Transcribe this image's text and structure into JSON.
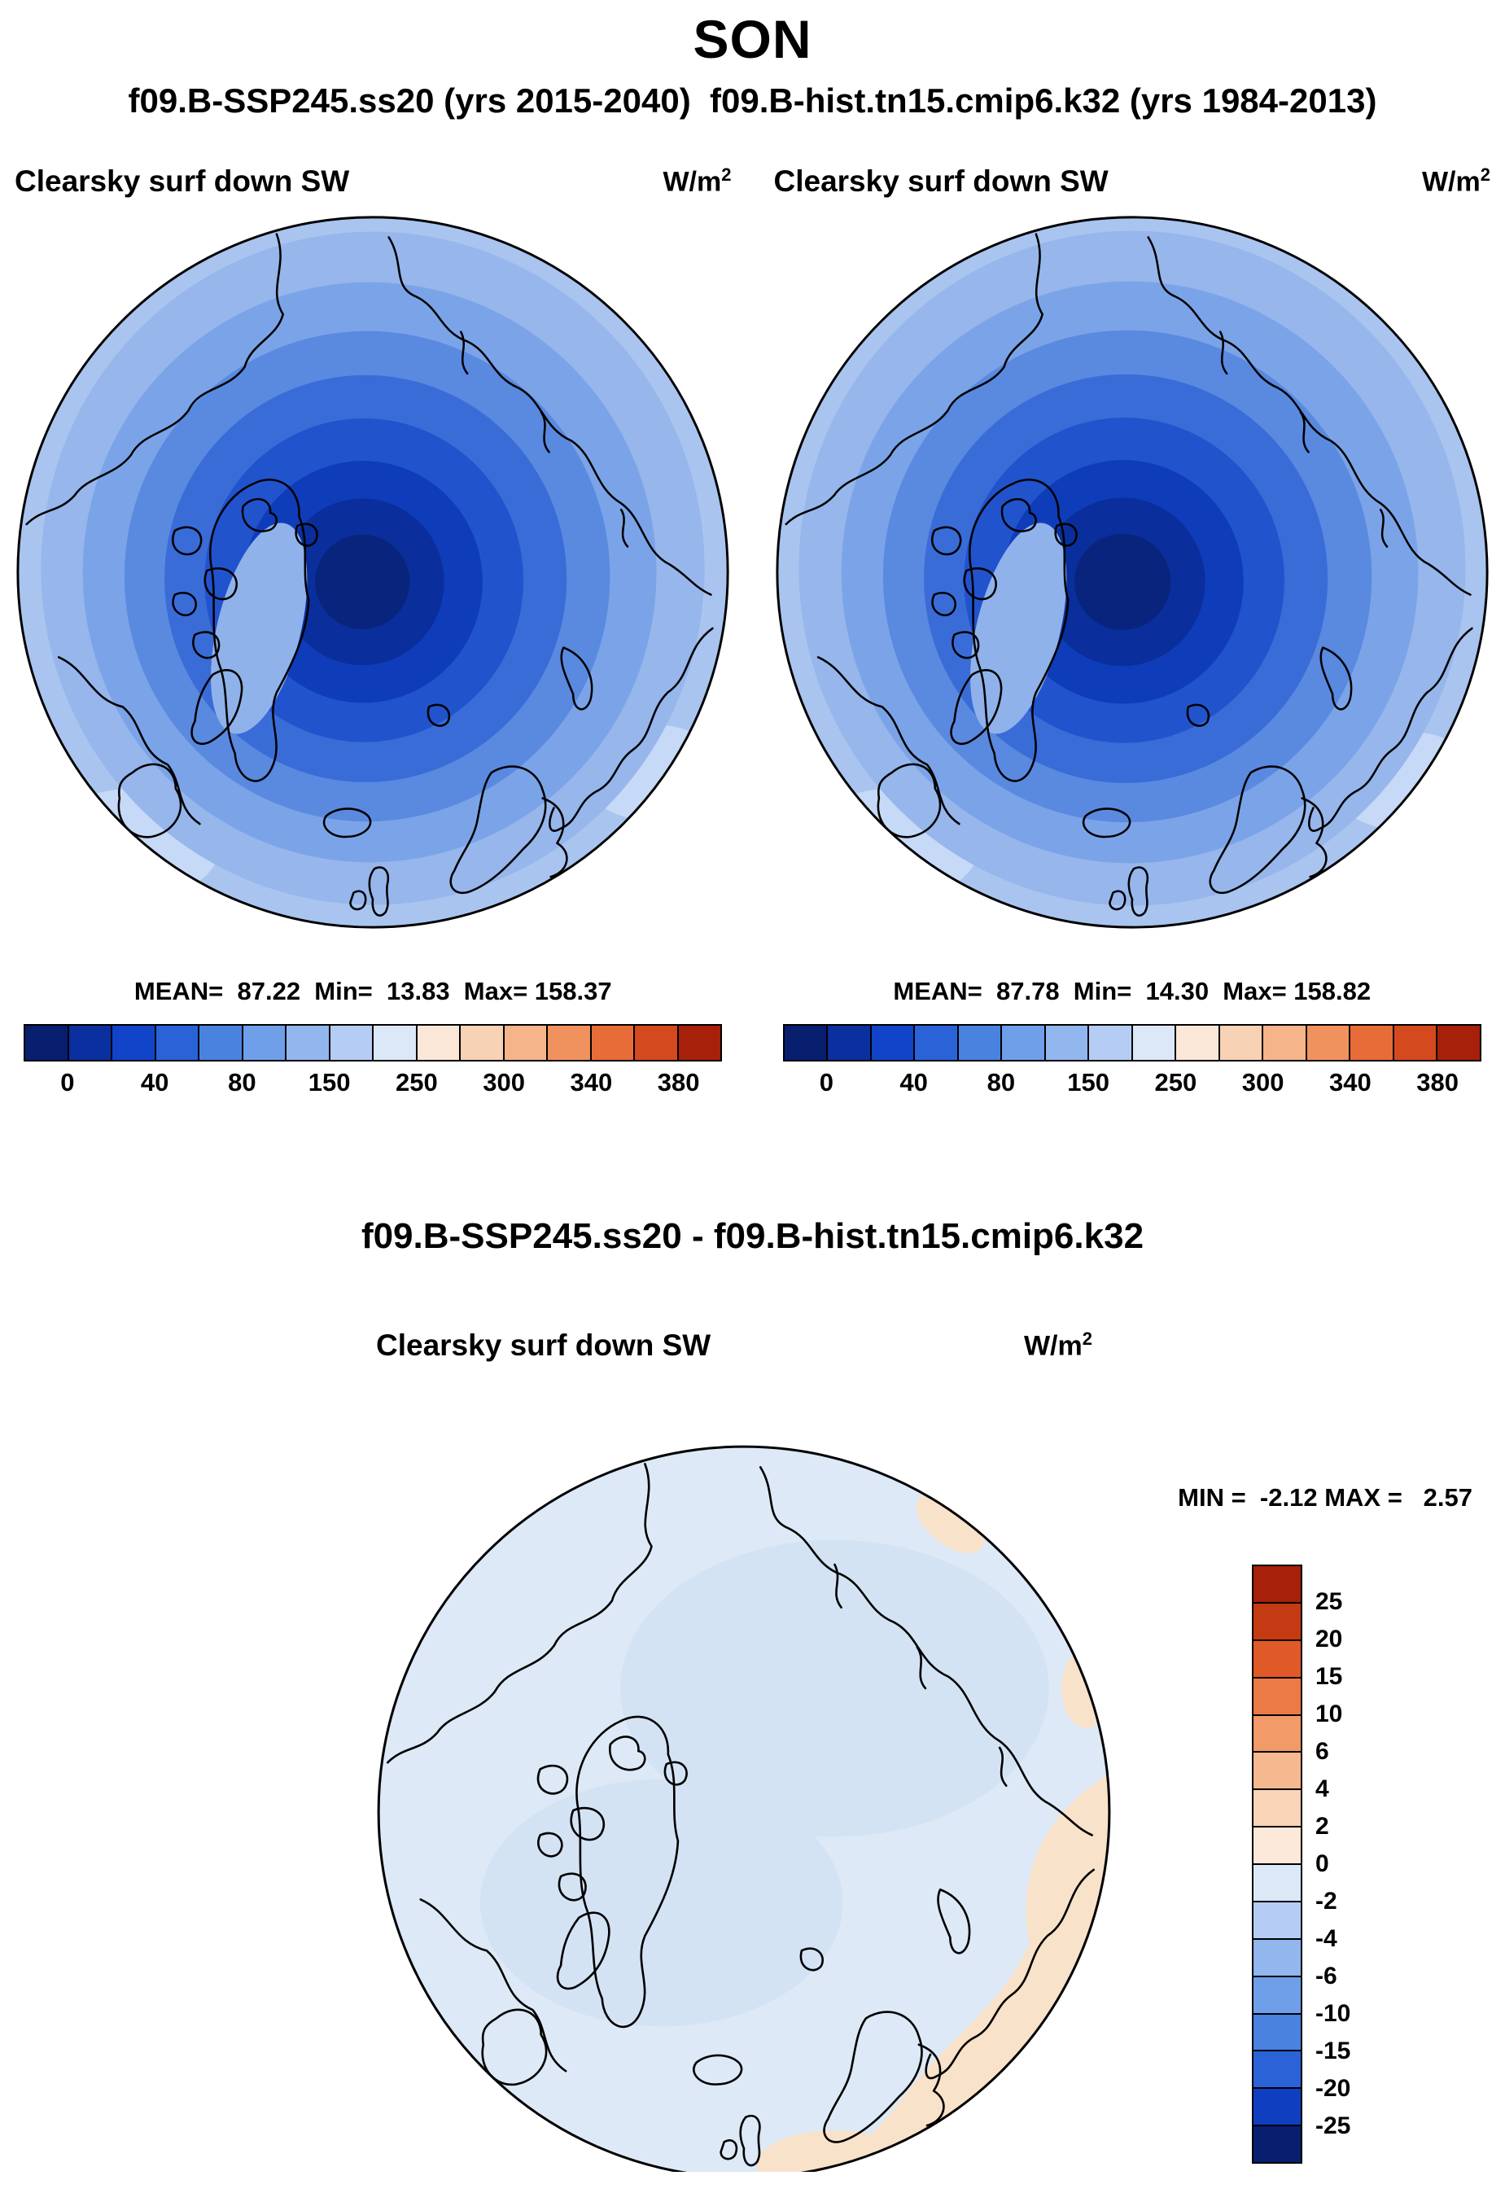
{
  "header": {
    "season": "SON",
    "runs_line": "f09.B-SSP245.ss20 (yrs 2015-2040)  f09.B-hist.tn15.cmip6.k32 (yrs 1984-2013)"
  },
  "panels": [
    {
      "field": "Clearsky surf down SW",
      "units_base": "W/m",
      "units_exp": "2",
      "stats": "MEAN=  87.22  Min=  13.83  Max= 158.37"
    },
    {
      "field": "Clearsky surf down SW",
      "units_base": "W/m",
      "units_exp": "2",
      "stats": "MEAN=  87.78  Min=  14.30  Max= 158.82"
    }
  ],
  "hbar": {
    "colors": [
      "#081f70",
      "#0a2f9e",
      "#1144c8",
      "#2a63d8",
      "#4a82e0",
      "#6f9fe8",
      "#92b6ee",
      "#b5cdf4",
      "#dce8f8",
      "#fbe7d8",
      "#f8d2b4",
      "#f5b489",
      "#f0925e",
      "#e86c38",
      "#d44a1e",
      "#a6200a"
    ],
    "ticks": [
      "0",
      "40",
      "80",
      "150",
      "250",
      "300",
      "340",
      "380"
    ]
  },
  "diff": {
    "title": "f09.B-SSP245.ss20 - f09.B-hist.tn15.cmip6.k32",
    "field": "Clearsky surf down SW",
    "units_base": "W/m",
    "units_exp": "2",
    "minmax": "MIN =  -2.12 MAX =   2.57",
    "vbar": {
      "colors": [
        "#a6200a",
        "#c43a12",
        "#e05a28",
        "#ec7a46",
        "#f29a68",
        "#f6b88e",
        "#fad4b6",
        "#fce9da",
        "#dce8f8",
        "#b5cdf4",
        "#92b6ee",
        "#6f9fe8",
        "#4a82e0",
        "#2a63d8",
        "#0f3fc0",
        "#081f70"
      ],
      "ticks": [
        "25",
        "20",
        "15",
        "10",
        "6",
        "4",
        "2",
        "0",
        "-2",
        "-4",
        "-6",
        "-10",
        "-15",
        "-20",
        "-25"
      ]
    }
  },
  "chart_data": [
    {
      "type": "heatmap",
      "projection": "north-polar-stereographic",
      "variable": "Clearsky surf down SW",
      "units": "W/m^2",
      "run": "f09.B-SSP245.ss20",
      "years": "2015-2040",
      "season": "SON",
      "mean": 87.22,
      "min": 13.83,
      "max": 158.37,
      "colorbar_ticks": [
        0,
        40,
        80,
        150,
        250,
        300,
        340,
        380
      ],
      "palette": "dark-blue (low, pole) to dark-red (high), field decreases from ~150 W/m^2 at map edge to ~14 W/m^2 at the pole in concentric rings",
      "legend_position": "bottom"
    },
    {
      "type": "heatmap",
      "projection": "north-polar-stereographic",
      "variable": "Clearsky surf down SW",
      "units": "W/m^2",
      "run": "f09.B-hist.tn15.cmip6.k32",
      "years": "1984-2013",
      "season": "SON",
      "mean": 87.78,
      "min": 14.3,
      "max": 158.82,
      "colorbar_ticks": [
        0,
        40,
        80,
        150,
        250,
        300,
        340,
        380
      ],
      "palette": "dark-blue (low, pole) to dark-red (high), field decreases from ~150 W/m^2 at map edge to ~14 W/m^2 at the pole in concentric rings",
      "legend_position": "bottom"
    },
    {
      "type": "heatmap",
      "projection": "north-polar-stereographic",
      "variable": "Clearsky surf down SW difference",
      "units": "W/m^2",
      "run": "f09.B-SSP245.ss20 - f09.B-hist.tn15.cmip6.k32",
      "season": "SON",
      "min": -2.12,
      "max": 2.57,
      "colorbar_ticks": [
        25,
        20,
        15,
        10,
        6,
        4,
        2,
        0,
        -2,
        -4,
        -6,
        -10,
        -15,
        -20,
        -25
      ],
      "palette": "mostly pale blue (-2 to 0) with pale orange (0 to 2) patches over Eurasia/Barents side",
      "legend_position": "right"
    }
  ]
}
